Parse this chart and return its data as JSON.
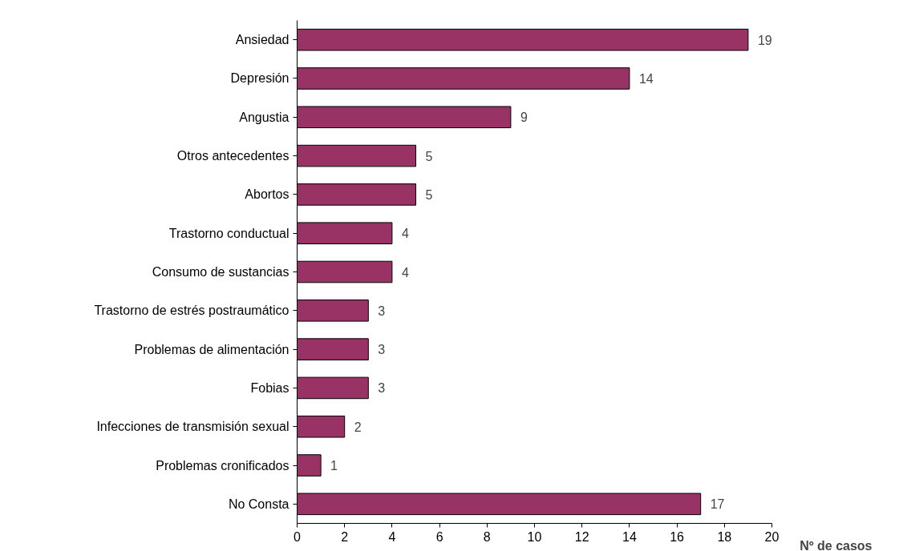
{
  "chart_data": {
    "type": "bar",
    "orientation": "horizontal",
    "xlabel": "Nº de casos",
    "categories": [
      "Ansiedad",
      "Depresión",
      "Angustia",
      "Otros antecedentes",
      "Abortos",
      "Trastorno conductual",
      "Consumo de sustancias",
      "Trastorno de estrés postraumático",
      "Problemas de alimentación",
      "Fobias",
      "Infecciones de transmisión sexual",
      "Problemas cronificados",
      "No Consta"
    ],
    "values": [
      19,
      14,
      9,
      5,
      5,
      4,
      4,
      3,
      3,
      3,
      2,
      1,
      17
    ],
    "color": "#993366",
    "xlim": [
      0,
      20
    ],
    "xticks": [
      0,
      2,
      4,
      6,
      8,
      10,
      12,
      14,
      16,
      18,
      20
    ],
    "grid": false,
    "data_labels": true
  }
}
